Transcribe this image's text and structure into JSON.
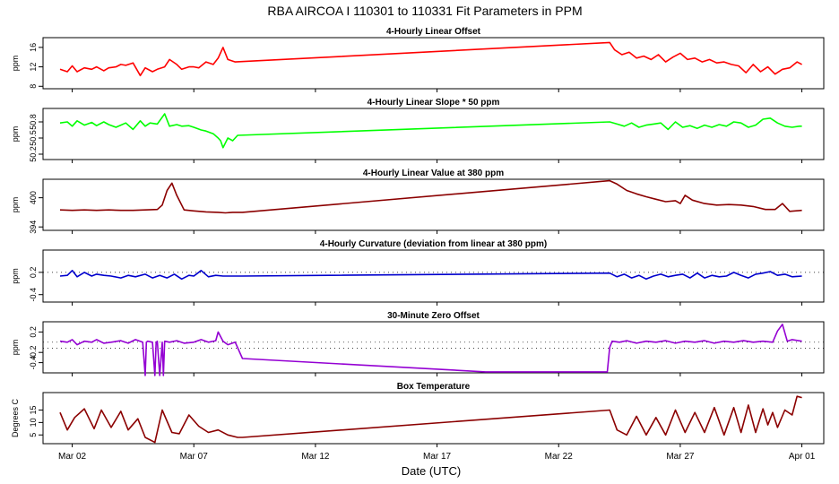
{
  "title": "RBA   AIRCOA I   110301 to 110331   Fit Parameters in PPM",
  "xlabel": "Date (UTC)",
  "x_ticks": [
    "Mar 02",
    "Mar 07",
    "Mar 12",
    "Mar 17",
    "Mar 22",
    "Mar 27",
    "Apr 01"
  ],
  "x_tick_days": [
    2,
    7,
    12,
    17,
    22,
    27,
    32
  ],
  "x_range": [
    0.8,
    32.9
  ],
  "chart_data": [
    {
      "type": "line",
      "title": "4-Hourly Linear Offset",
      "ylabel": "ppm",
      "color": "#ff0000",
      "yticks": [
        8,
        12,
        16
      ],
      "ylim": [
        7.5,
        18
      ],
      "x": [
        1.5,
        1.8,
        2.0,
        2.2,
        2.5,
        2.8,
        3.0,
        3.3,
        3.5,
        3.8,
        4.0,
        4.2,
        4.5,
        4.8,
        5.0,
        5.3,
        5.5,
        5.8,
        6.0,
        6.3,
        6.5,
        6.8,
        7.0,
        7.2,
        7.5,
        7.8,
        8.0,
        8.2,
        8.4,
        8.7,
        24.1,
        24.3,
        24.6,
        24.9,
        25.2,
        25.5,
        25.8,
        26.1,
        26.4,
        26.7,
        27.0,
        27.3,
        27.6,
        27.9,
        28.2,
        28.5,
        28.8,
        29.1,
        29.4,
        29.7,
        30.0,
        30.3,
        30.6,
        30.9,
        31.2,
        31.5,
        31.8,
        32.0
      ],
      "y": [
        11.5,
        11.0,
        12.2,
        11.0,
        11.8,
        11.5,
        12.0,
        11.2,
        11.8,
        12.0,
        12.5,
        12.3,
        12.8,
        10.2,
        11.8,
        11.0,
        11.5,
        12.0,
        13.5,
        12.5,
        11.5,
        12.0,
        12.0,
        11.8,
        13.0,
        12.5,
        13.8,
        16.0,
        13.5,
        13.0,
        17.0,
        15.5,
        14.5,
        15.0,
        13.8,
        14.2,
        13.5,
        14.5,
        13.0,
        14.0,
        14.8,
        13.5,
        13.8,
        13.0,
        13.5,
        12.8,
        13.0,
        12.5,
        12.2,
        10.8,
        12.5,
        11.0,
        12.0,
        10.5,
        11.5,
        11.8,
        13.0,
        12.5
      ]
    },
    {
      "type": "line",
      "title": "4-Hourly Linear Slope * 50 ppm",
      "ylabel": "ppm",
      "color": "#00ff00",
      "yticks": [
        50.2,
        50.5,
        50.8
      ],
      "ylim": [
        50.1,
        51.05
      ],
      "x": [
        1.5,
        1.8,
        2.0,
        2.2,
        2.5,
        2.8,
        3.0,
        3.3,
        3.5,
        3.8,
        4.0,
        4.2,
        4.5,
        4.8,
        5.0,
        5.2,
        5.5,
        5.8,
        6.0,
        6.3,
        6.5,
        6.8,
        7.0,
        7.3,
        7.5,
        7.8,
        8.0,
        8.1,
        8.2,
        8.4,
        8.6,
        8.8,
        24.1,
        24.4,
        24.7,
        25.0,
        25.3,
        25.6,
        25.9,
        26.2,
        26.5,
        26.8,
        27.1,
        27.4,
        27.7,
        28.0,
        28.3,
        28.6,
        28.9,
        29.2,
        29.5,
        29.8,
        30.1,
        30.4,
        30.7,
        31.0,
        31.3,
        31.6,
        31.9,
        32.0
      ],
      "y": [
        50.78,
        50.8,
        50.72,
        50.82,
        50.74,
        50.79,
        50.73,
        50.8,
        50.75,
        50.7,
        50.74,
        50.78,
        50.66,
        50.82,
        50.72,
        50.78,
        50.76,
        50.95,
        50.72,
        50.75,
        50.72,
        50.73,
        50.7,
        50.65,
        50.63,
        50.58,
        50.5,
        50.45,
        50.32,
        50.5,
        50.45,
        50.55,
        50.8,
        50.76,
        50.72,
        50.78,
        50.7,
        50.74,
        50.76,
        50.78,
        50.66,
        50.8,
        50.7,
        50.73,
        50.68,
        50.74,
        50.7,
        50.75,
        50.72,
        50.8,
        50.78,
        50.7,
        50.74,
        50.85,
        50.87,
        50.78,
        50.72,
        50.7,
        50.72,
        50.72
      ]
    },
    {
      "type": "line",
      "title": "4-Hourly Linear Value at 380 ppm",
      "ylabel": "ppm",
      "color": "#8b0000",
      "yticks": [
        394,
        400
      ],
      "ylim": [
        393.3,
        403.8
      ],
      "x": [
        1.5,
        2.0,
        2.5,
        3.0,
        3.5,
        4.0,
        4.5,
        5.0,
        5.5,
        5.7,
        5.9,
        6.1,
        6.3,
        6.6,
        7.0,
        7.5,
        8.0,
        8.3,
        8.6,
        9.0,
        24.1,
        24.4,
        24.8,
        25.2,
        25.6,
        26.0,
        26.4,
        26.8,
        27.0,
        27.2,
        27.5,
        28.0,
        28.5,
        29.0,
        29.5,
        30.0,
        30.5,
        30.9,
        31.2,
        31.5,
        32.0
      ],
      "y": [
        397.5,
        397.4,
        397.5,
        397.4,
        397.5,
        397.4,
        397.4,
        397.5,
        397.6,
        398.5,
        401.5,
        403.0,
        400.5,
        397.5,
        397.3,
        397.1,
        397.0,
        396.9,
        397.0,
        397.0,
        403.5,
        402.8,
        401.5,
        400.8,
        400.2,
        399.7,
        399.2,
        399.4,
        398.8,
        400.5,
        399.5,
        398.8,
        398.5,
        398.6,
        398.5,
        398.2,
        397.6,
        397.6,
        398.8,
        397.2,
        397.4
      ]
    },
    {
      "type": "line",
      "title": "4-Hourly Curvature (deviation from linear at 380 ppm)",
      "ylabel": "ppm",
      "color": "#0000cd",
      "yticks": [
        -0.4,
        0.2
      ],
      "ylim": [
        -0.6,
        0.8
      ],
      "reference_lines": [
        0.2
      ],
      "x": [
        1.5,
        1.8,
        2.0,
        2.2,
        2.5,
        2.8,
        3.0,
        3.3,
        3.6,
        4.0,
        4.3,
        4.6,
        5.0,
        5.3,
        5.6,
        5.9,
        6.2,
        6.5,
        6.8,
        7.0,
        7.3,
        7.6,
        7.9,
        8.2,
        8.5,
        9.0,
        24.1,
        24.4,
        24.7,
        25.0,
        25.3,
        25.6,
        25.9,
        26.2,
        26.5,
        26.8,
        27.1,
        27.4,
        27.7,
        28.0,
        28.3,
        28.6,
        28.9,
        29.2,
        29.5,
        29.8,
        30.1,
        30.4,
        30.7,
        31.0,
        31.3,
        31.6,
        32.0
      ],
      "y": [
        0.1,
        0.12,
        0.25,
        0.08,
        0.2,
        0.1,
        0.15,
        0.12,
        0.1,
        0.05,
        0.12,
        0.08,
        0.15,
        0.05,
        0.12,
        0.05,
        0.15,
        0.02,
        0.12,
        0.1,
        0.25,
        0.08,
        0.12,
        0.1,
        0.1,
        0.1,
        0.18,
        0.08,
        0.15,
        0.05,
        0.12,
        0.02,
        0.1,
        0.15,
        0.08,
        0.12,
        0.15,
        0.05,
        0.18,
        0.05,
        0.12,
        0.08,
        0.1,
        0.2,
        0.12,
        0.05,
        0.15,
        0.18,
        0.22,
        0.12,
        0.15,
        0.08,
        0.1
      ]
    },
    {
      "type": "line",
      "title": "30-Minute Zero Offset",
      "ylabel": "ppm",
      "color": "#9400d3",
      "yticks": [
        -0.4,
        -0.2,
        0.2
      ],
      "ylim": [
        -0.6,
        0.4
      ],
      "reference_lines": [
        0.0,
        -0.12
      ],
      "x": [
        1.5,
        1.8,
        2.0,
        2.2,
        2.5,
        2.8,
        3.0,
        3.3,
        3.6,
        4.0,
        4.3,
        4.6,
        4.9,
        5.0,
        5.05,
        5.1,
        5.3,
        5.4,
        5.45,
        5.5,
        5.6,
        5.7,
        5.75,
        5.8,
        6.0,
        6.3,
        6.6,
        7.0,
        7.3,
        7.6,
        7.9,
        8.0,
        8.2,
        8.4,
        8.7,
        9.0,
        19.0,
        24.0,
        24.1,
        24.2,
        24.5,
        24.8,
        25.2,
        25.6,
        26.0,
        26.4,
        26.8,
        27.2,
        27.6,
        28.0,
        28.4,
        28.8,
        29.2,
        29.6,
        30.0,
        30.4,
        30.8,
        31.0,
        31.2,
        31.4,
        31.6,
        32.0
      ],
      "y": [
        0.02,
        0.0,
        0.05,
        -0.05,
        0.02,
        0.0,
        0.05,
        -0.02,
        0.0,
        0.03,
        -0.02,
        0.05,
        0.0,
        -0.65,
        0.0,
        0.02,
        0.0,
        -0.65,
        0.0,
        0.02,
        -0.65,
        0.0,
        -0.65,
        0.02,
        0.0,
        0.03,
        -0.02,
        0.0,
        0.05,
        0.0,
        0.03,
        0.2,
        0.02,
        -0.05,
        0.0,
        -0.32,
        -0.58,
        -0.58,
        -0.1,
        0.02,
        0.0,
        0.03,
        -0.02,
        0.02,
        0.0,
        0.03,
        -0.02,
        0.02,
        0.0,
        0.03,
        -0.02,
        0.02,
        0.0,
        0.03,
        0.0,
        0.02,
        0.0,
        0.22,
        0.35,
        0.02,
        0.05,
        0.02
      ]
    },
    {
      "type": "line",
      "title": "Box Temperature",
      "ylabel": "Degrees C",
      "color": "#8b0000",
      "yticks": [
        5,
        10,
        15
      ],
      "ylim": [
        1.5,
        22
      ],
      "x": [
        1.5,
        1.8,
        2.1,
        2.5,
        2.9,
        3.2,
        3.6,
        4.0,
        4.3,
        4.7,
        5.0,
        5.4,
        5.7,
        6.1,
        6.4,
        6.8,
        7.2,
        7.6,
        8.0,
        8.4,
        8.8,
        9.0,
        24.1,
        24.4,
        24.8,
        25.2,
        25.6,
        26.0,
        26.4,
        26.8,
        27.2,
        27.6,
        28.0,
        28.4,
        28.8,
        29.2,
        29.5,
        29.8,
        30.1,
        30.4,
        30.6,
        30.8,
        31.0,
        31.3,
        31.6,
        31.8,
        32.0
      ],
      "y": [
        14.0,
        7.0,
        12.0,
        15.5,
        7.5,
        15.0,
        8.0,
        14.5,
        7.0,
        11.5,
        4.0,
        2.0,
        15.0,
        6.0,
        5.5,
        13.0,
        8.5,
        6.0,
        7.0,
        5.0,
        4.0,
        4.0,
        15.0,
        7.0,
        5.0,
        12.5,
        5.0,
        12.0,
        5.0,
        15.0,
        6.0,
        14.0,
        6.0,
        16.0,
        5.0,
        16.0,
        6.0,
        17.0,
        6.0,
        15.5,
        9.0,
        14.0,
        8.0,
        15.0,
        13.0,
        20.5,
        20.0
      ]
    }
  ]
}
